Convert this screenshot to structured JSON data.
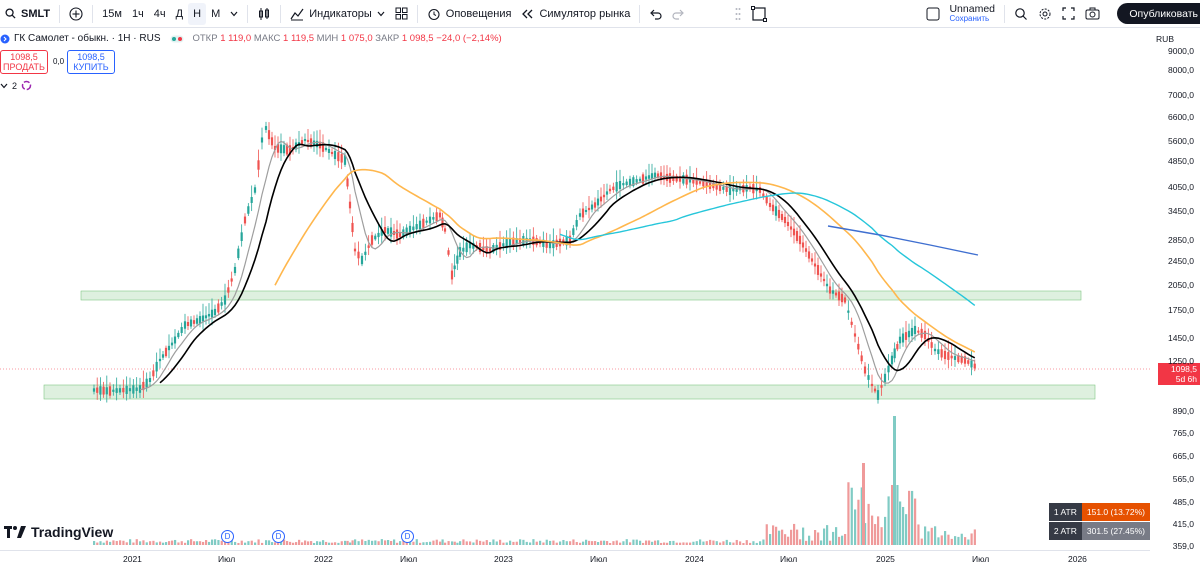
{
  "toolbar": {
    "symbol": "SMLT",
    "intervals": [
      "15м",
      "1ч",
      "4ч",
      "Д",
      "Н",
      "М"
    ],
    "active_interval": "Н",
    "indicators_label": "Индикаторы",
    "alerts_label": "Оповещения",
    "replay_label": "Симулятор рынка",
    "layout_name": "Unnamed",
    "layout_save": "Сохранить",
    "publish_label": "Опубликовать"
  },
  "legend": {
    "name": "ГК Самолет - обыкн. · 1Н · RUS",
    "o_label": "ОТКР",
    "o": "1 119,0",
    "h_label": "МАКС",
    "h": "1 119,5",
    "l_label": "МИН",
    "l": "1 075,0",
    "c_label": "ЗАКР",
    "c": "1 098,5",
    "change": "−24,0 (−2,14%)",
    "sell_price": "1098,5",
    "sell_label": "ПРОДАТЬ",
    "spread": "0,0",
    "buy_price": "1098,5",
    "buy_label": "КУПИТЬ",
    "indicators_count": "2"
  },
  "price_axis": {
    "currency": "RUB",
    "labels": [
      "9000,0",
      "8000,0",
      "7000,0",
      "6600,0",
      "5600,0",
      "4850,0",
      "4050,0",
      "3450,0",
      "2850,0",
      "2450,0",
      "2050,0",
      "1750,0",
      "1450,0",
      "1250,0",
      "890,0",
      "765,0",
      "665,0",
      "565,0",
      "485,0",
      "415,0",
      "359,0"
    ],
    "current_price": "1098,5",
    "current_timer": "5d 6h"
  },
  "time_axis": {
    "labels": [
      "2021",
      "Июл",
      "2022",
      "Июл",
      "2023",
      "Июл",
      "2024",
      "Июл",
      "2025",
      "Июл",
      "2026"
    ]
  },
  "atr": [
    {
      "key": "1 ATR",
      "value": "151.0 (13.72%)"
    },
    {
      "key": "2 ATR",
      "value": "301.5 (27.45%)"
    }
  ],
  "dividends": [
    "D",
    "D",
    "D"
  ],
  "brand": "TradingView",
  "colors": {
    "up": "#26a69a",
    "down": "#ef5350",
    "accent": "#2962ff",
    "zone": "#c8e6c9"
  }
}
